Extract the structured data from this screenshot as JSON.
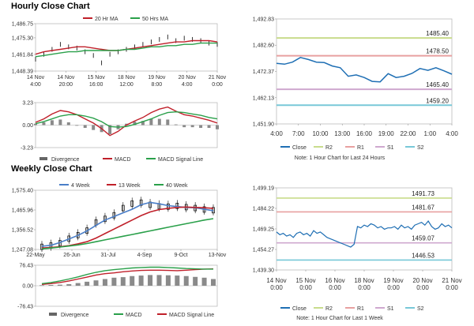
{
  "section_titles": {
    "hourly": "Hourly Close Chart",
    "weekly": "Weekly Close Chart"
  },
  "chart_data": [
    {
      "id": "hourly-price",
      "type": "line",
      "title": "Hourly Close Chart",
      "legend": [
        "20 Hr MA",
        "50 Hrs MA"
      ],
      "y_ticks": [
        "1,486.75",
        "1,475.30",
        "1,461.84",
        "1,448.39"
      ],
      "y_tick_values": [
        1486.75,
        1475.3,
        1461.84,
        1448.39
      ],
      "ylim": [
        1448.39,
        1486.75
      ],
      "x_ticks": [
        [
          "14 Nov",
          "4:00"
        ],
        [
          "14 Nov",
          "20:00"
        ],
        [
          "15 Nov",
          "16:00"
        ],
        [
          "18 Nov",
          "12:00"
        ],
        [
          "19 Nov",
          "8:00"
        ],
        [
          "20 Nov",
          "4:00"
        ],
        [
          "21 Nov",
          "0:00"
        ]
      ],
      "series": [
        {
          "name": "20 Hr MA",
          "color": "#c0202a",
          "values": [
            1462,
            1464,
            1465,
            1466,
            1467,
            1468,
            1468,
            1467,
            1466,
            1465,
            1465,
            1466,
            1467,
            1468,
            1469,
            1470,
            1471,
            1472,
            1472,
            1473,
            1473,
            1473,
            1472
          ]
        },
        {
          "name": "50 Hrs MA",
          "color": "#2aa04a",
          "values": [
            1460,
            1461,
            1462,
            1463,
            1464,
            1464,
            1465,
            1465,
            1465,
            1465,
            1465,
            1466,
            1466,
            1467,
            1468,
            1468,
            1469,
            1469,
            1470,
            1470,
            1471,
            1471,
            1471
          ]
        },
        {
          "name": "Close",
          "color": "#000000",
          "values": [
            1458,
            1462,
            1466,
            1470,
            1468,
            1467,
            1464,
            1461,
            1455,
            1462,
            1464,
            1466,
            1468,
            1470,
            1472,
            1474,
            1476,
            1473,
            1475,
            1474,
            1473,
            1471,
            1470
          ]
        }
      ]
    },
    {
      "id": "hourly-macd",
      "type": "line",
      "y_ticks": [
        "3.23",
        "0.00",
        "-3.23"
      ],
      "y_tick_values": [
        3.23,
        0,
        -3.23
      ],
      "ylim": [
        -3.23,
        3.23
      ],
      "legend": [
        "Divergence",
        "MACD",
        "MACD Signal Line"
      ],
      "series": [
        {
          "name": "MACD",
          "color": "#c0202a",
          "values": [
            0.4,
            0.9,
            1.6,
            2.1,
            1.9,
            1.5,
            0.9,
            0.3,
            -0.5,
            -1.5,
            -0.9,
            0.0,
            0.6,
            1.1,
            1.8,
            2.3,
            2.6,
            2.0,
            1.5,
            1.3,
            1.0,
            0.7,
            0.3
          ]
        },
        {
          "name": "MACD Signal Line",
          "color": "#2aa04a",
          "values": [
            0.2,
            0.5,
            0.9,
            1.3,
            1.5,
            1.5,
            1.3,
            1.0,
            0.5,
            -0.2,
            -0.3,
            -0.2,
            0.1,
            0.5,
            0.9,
            1.4,
            1.8,
            1.9,
            1.8,
            1.6,
            1.4,
            1.1,
            0.9
          ]
        },
        {
          "name": "Divergence",
          "color": "#777777",
          "values": [
            0.2,
            0.4,
            0.7,
            0.8,
            0.4,
            0.0,
            -0.4,
            -0.7,
            -1.0,
            -1.3,
            -0.6,
            0.2,
            0.5,
            0.6,
            0.9,
            0.9,
            0.8,
            0.1,
            -0.3,
            -0.3,
            -0.4,
            -0.4,
            -0.6
          ]
        }
      ]
    },
    {
      "id": "hourly-24h",
      "type": "line",
      "y_ticks": [
        "1,492.83",
        "1,482.60",
        "1,472.37",
        "1,462.13",
        "1,451.90"
      ],
      "y_tick_values": [
        1492.83,
        1482.6,
        1472.37,
        1462.13,
        1451.9
      ],
      "ylim": [
        1451.9,
        1492.83
      ],
      "x_ticks": [
        "4:00",
        "7:00",
        "10:00",
        "13:00",
        "16:00",
        "19:00",
        "22:00",
        "1:00",
        "4:00"
      ],
      "levels": [
        {
          "name": "R2",
          "value": 1485.4,
          "label": "1485.40",
          "color": "#c8dc8c"
        },
        {
          "name": "R1",
          "value": 1478.5,
          "label": "1478.50",
          "color": "#e8a0a0"
        },
        {
          "name": "S1",
          "value": 1465.4,
          "label": "1465.40",
          "color": "#cfa8cf"
        },
        {
          "name": "S2",
          "value": 1459.2,
          "label": "1459.20",
          "color": "#78c8d8"
        }
      ],
      "series": [
        {
          "name": "Close",
          "color": "#1f6fb4",
          "values": [
            1475.5,
            1475.2,
            1476.0,
            1477.8,
            1477.0,
            1476.0,
            1475.8,
            1474.5,
            1473.8,
            1470.5,
            1471.0,
            1470.0,
            1468.5,
            1468.3,
            1471.5,
            1470.0,
            1470.5,
            1471.6,
            1473.5,
            1472.8,
            1473.8,
            1472.6,
            1471.3
          ]
        }
      ],
      "legend": [
        "Close",
        "R2",
        "R1",
        "S1",
        "S2"
      ],
      "note": "Note: 1 Hour Chart for Last 24 Hours"
    },
    {
      "id": "weekly-price",
      "type": "line",
      "title": "Weekly Close Chart",
      "legend": [
        "4 Week",
        "13 Week",
        "40 Week"
      ],
      "y_ticks": [
        "1,575.40",
        "1,465.96",
        "1,356.52",
        "1,247.08"
      ],
      "y_tick_values": [
        1575.4,
        1465.96,
        1356.52,
        1247.08
      ],
      "ylim": [
        1247.08,
        1575.4
      ],
      "x_ticks": [
        "22-May",
        "26-Jun",
        "31-Jul",
        "4-Sep",
        "9-Oct",
        "13-Nov"
      ],
      "series": [
        {
          "name": "4 Week",
          "color": "#4a7ec8",
          "values": [
            1265,
            1270,
            1285,
            1305,
            1325,
            1350,
            1380,
            1410,
            1430,
            1450,
            1470,
            1495,
            1508,
            1500,
            1490,
            1485,
            1480,
            1478,
            1470,
            1462
          ]
        },
        {
          "name": "13 Week",
          "color": "#c0202a",
          "values": [
            1255,
            1258,
            1262,
            1268,
            1278,
            1290,
            1310,
            1335,
            1360,
            1385,
            1410,
            1435,
            1455,
            1468,
            1475,
            1480,
            1482,
            1480,
            1478,
            1475
          ]
        },
        {
          "name": "40 Week",
          "color": "#2aa04a",
          "values": [
            1250,
            1255,
            1260,
            1266,
            1272,
            1280,
            1290,
            1300,
            1310,
            1320,
            1330,
            1340,
            1350,
            1360,
            1370,
            1380,
            1390,
            1400,
            1410,
            1418
          ]
        },
        {
          "name": "Close",
          "color": "#000000",
          "values": [
            1255,
            1262,
            1275,
            1300,
            1320,
            1345,
            1390,
            1410,
            1430,
            1470,
            1495,
            1500,
            1488,
            1480,
            1478,
            1482,
            1475,
            1470,
            1462,
            1458
          ]
        }
      ]
    },
    {
      "id": "weekly-macd",
      "type": "line",
      "y_ticks": [
        "76.43",
        "0.00",
        "-76.43"
      ],
      "y_tick_values": [
        76.43,
        0,
        -76.43
      ],
      "ylim": [
        -76.43,
        76.43
      ],
      "legend": [
        "Divergence",
        "MACD",
        "MACD Signal Line"
      ],
      "series": [
        {
          "name": "MACD",
          "color": "#c0202a",
          "values": [
            5,
            8,
            12,
            18,
            25,
            32,
            40,
            45,
            48,
            52,
            55,
            57,
            58,
            58,
            57,
            56,
            58,
            60,
            62,
            63
          ]
        },
        {
          "name": "MACD Signal Line",
          "color": "#2aa04a",
          "values": [
            8,
            12,
            18,
            25,
            33,
            42,
            50,
            56,
            60,
            63,
            66,
            68,
            69,
            69,
            68,
            66,
            64,
            63,
            62,
            62
          ]
        },
        {
          "name": "Divergence",
          "color": "#777777",
          "values": [
            2,
            3,
            4,
            6,
            10,
            15,
            20,
            25,
            30,
            32,
            36,
            38,
            40,
            40,
            39,
            38,
            36,
            33,
            30,
            25
          ]
        }
      ]
    },
    {
      "id": "weekly-1h",
      "type": "line",
      "y_ticks": [
        "1,499.19",
        "1,484.22",
        "1,469.25",
        "1,454.27",
        "1,439.30"
      ],
      "y_tick_values": [
        1499.19,
        1484.22,
        1469.25,
        1454.27,
        1439.3
      ],
      "ylim": [
        1439.3,
        1499.19
      ],
      "x_ticks": [
        [
          "14 Nov",
          "0:00"
        ],
        [
          "15 Nov",
          "0:00"
        ],
        [
          "16 Nov",
          "0:00"
        ],
        [
          "18 Nov",
          "0:00"
        ],
        [
          "19 Nov",
          "0:00"
        ],
        [
          "20 Nov",
          "0:00"
        ],
        [
          "21 Nov",
          "0:00"
        ]
      ],
      "levels": [
        {
          "name": "R2",
          "value": 1491.73,
          "label": "1491.73",
          "color": "#c8dc8c"
        },
        {
          "name": "R1",
          "value": 1481.67,
          "label": "1481.67",
          "color": "#e8a0a0"
        },
        {
          "name": "S1",
          "value": 1459.07,
          "label": "1459.07",
          "color": "#cfa8cf"
        },
        {
          "name": "S2",
          "value": 1446.53,
          "label": "1446.53",
          "color": "#78c8d8"
        }
      ],
      "series": [
        {
          "name": "Close",
          "color": "#1f6fb4",
          "values": [
            1467,
            1465,
            1466,
            1464,
            1465,
            1463,
            1466,
            1467,
            1465,
            1466,
            1464,
            1468,
            1466,
            1467,
            1465,
            1463,
            1462,
            1461,
            1460,
            1459,
            1458,
            1457,
            1456,
            1458,
            1471,
            1470,
            1472,
            1471,
            1473,
            1472,
            1470,
            1471,
            1469,
            1470,
            1470,
            1471,
            1469,
            1472,
            1470,
            1471,
            1469,
            1472,
            1473,
            1474,
            1472,
            1475,
            1471,
            1469,
            1470,
            1473,
            1471,
            1472,
            1470
          ]
        }
      ],
      "legend": [
        "Close",
        "R2",
        "R1",
        "S1",
        "S2"
      ],
      "note": "Note: 1 Hour Chart for Last 1 Week"
    }
  ]
}
